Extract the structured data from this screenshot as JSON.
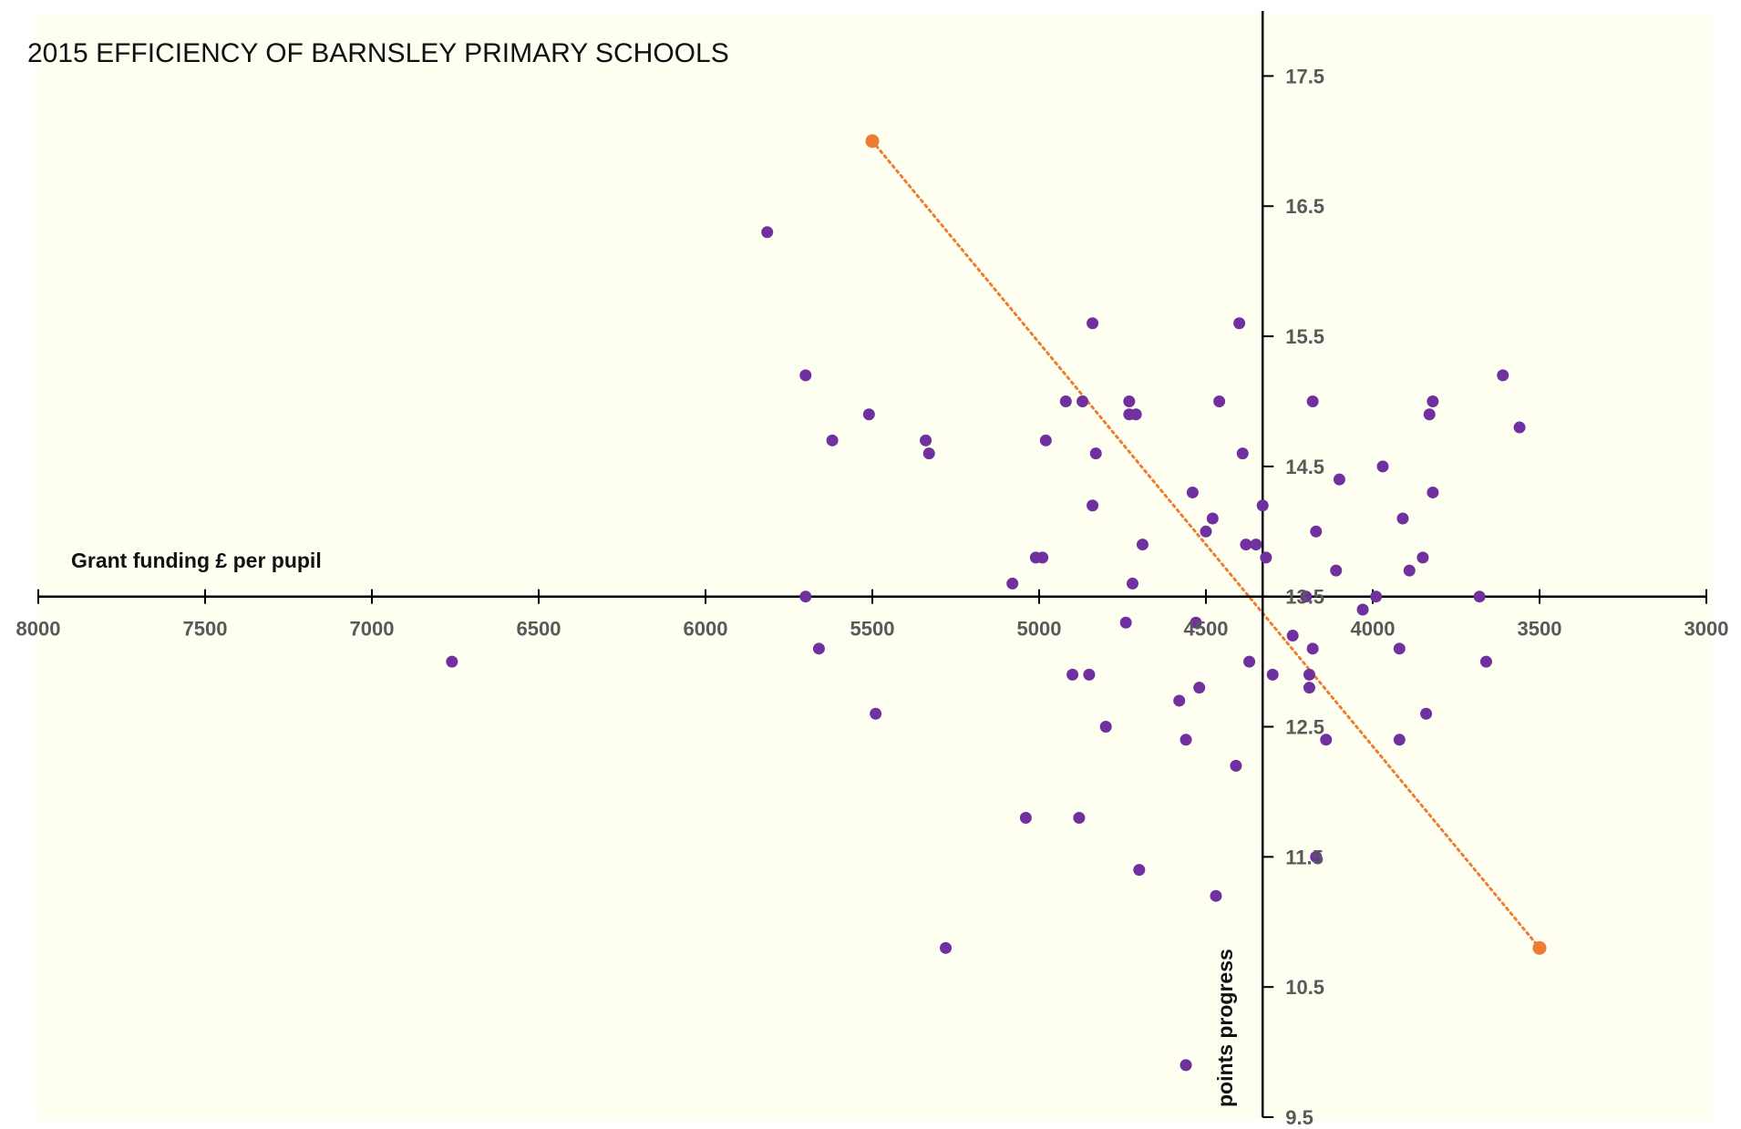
{
  "chart_data": {
    "type": "scatter",
    "title": "2015  EFFICIENCY OF BARNSLEY PRIMARY SCHOOLS",
    "xlabel": "Grant funding £ per pupil",
    "ylabel": "points progress",
    "x_axis_reversed": true,
    "xlim": [
      3000,
      8000
    ],
    "ylim": [
      9.5,
      18
    ],
    "x_crosses_y_at": 13.5,
    "y_crosses_x_at": 4330,
    "x_ticks": [
      "8000",
      "7500",
      "7000",
      "6500",
      "6000",
      "5500",
      "5000",
      "4500",
      "4000",
      "3500",
      "3000"
    ],
    "y_ticks": [
      "17.5",
      "16.5",
      "15.5",
      "14.5",
      "13.5",
      "12.5",
      "11.5",
      "10.5",
      "9.5"
    ],
    "grid": false,
    "legend": "none",
    "colors": {
      "plot_background": "#fefef1",
      "points": "#7030a0",
      "trend": "#ed7d31",
      "axis": "#000000"
    },
    "series": [
      {
        "marker": "circle",
        "points": [
          [
            5815,
            16.3
          ],
          [
            5700,
            15.2
          ],
          [
            5620,
            14.7
          ],
          [
            5510,
            14.9
          ],
          [
            5700,
            13.5
          ],
          [
            5660,
            13.1
          ],
          [
            5340,
            14.7
          ],
          [
            5330,
            14.6
          ],
          [
            5490,
            12.6
          ],
          [
            6760,
            13.0
          ],
          [
            5280,
            10.8
          ],
          [
            4840,
            15.6
          ],
          [
            4920,
            15.0
          ],
          [
            4870,
            15.0
          ],
          [
            4980,
            14.7
          ],
          [
            4830,
            14.6
          ],
          [
            4840,
            14.2
          ],
          [
            4730,
            15.0
          ],
          [
            4730,
            14.9
          ],
          [
            4710,
            14.9
          ],
          [
            5010,
            13.8
          ],
          [
            4990,
            13.8
          ],
          [
            4690,
            13.9
          ],
          [
            5080,
            13.6
          ],
          [
            4720,
            13.6
          ],
          [
            4740,
            13.3
          ],
          [
            4900,
            12.9
          ],
          [
            4850,
            12.9
          ],
          [
            4800,
            12.5
          ],
          [
            5040,
            11.8
          ],
          [
            4880,
            11.8
          ],
          [
            4700,
            11.4
          ],
          [
            4400,
            15.6
          ],
          [
            4460,
            15.0
          ],
          [
            4390,
            14.6
          ],
          [
            4540,
            14.3
          ],
          [
            4480,
            14.1
          ],
          [
            4500,
            14.0
          ],
          [
            4330,
            14.2
          ],
          [
            4380,
            13.9
          ],
          [
            4350,
            13.9
          ],
          [
            4320,
            13.8
          ],
          [
            4530,
            13.3
          ],
          [
            4370,
            13.0
          ],
          [
            4300,
            12.9
          ],
          [
            4580,
            12.7
          ],
          [
            4520,
            12.8
          ],
          [
            4560,
            12.4
          ],
          [
            4410,
            12.2
          ],
          [
            4470,
            11.2
          ],
          [
            4560,
            9.9
          ],
          [
            4180,
            15.0
          ],
          [
            4170,
            14.0
          ],
          [
            4100,
            14.4
          ],
          [
            4110,
            13.7
          ],
          [
            4200,
            13.5
          ],
          [
            4030,
            13.4
          ],
          [
            3990,
            13.5
          ],
          [
            4180,
            13.1
          ],
          [
            4240,
            13.2
          ],
          [
            4190,
            12.9
          ],
          [
            4190,
            12.8
          ],
          [
            4140,
            12.4
          ],
          [
            4170,
            11.5
          ],
          [
            3970,
            14.5
          ],
          [
            3910,
            14.1
          ],
          [
            3890,
            13.7
          ],
          [
            3850,
            13.8
          ],
          [
            3920,
            13.1
          ],
          [
            3840,
            12.6
          ],
          [
            3920,
            12.4
          ],
          [
            3820,
            15.0
          ],
          [
            3830,
            14.9
          ],
          [
            3820,
            14.3
          ],
          [
            3610,
            15.2
          ],
          [
            3560,
            14.8
          ],
          [
            3660,
            13.0
          ],
          [
            3680,
            13.5
          ]
        ]
      }
    ],
    "trendline": {
      "style": "dotted",
      "points": [
        [
          5500,
          17.0
        ],
        [
          3500,
          10.8
        ]
      ]
    }
  }
}
